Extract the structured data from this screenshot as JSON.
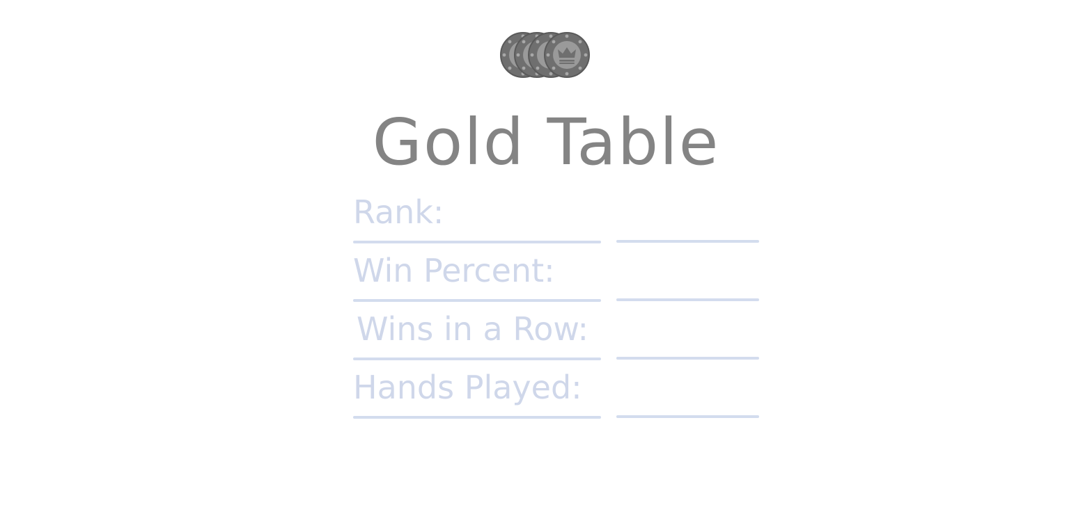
{
  "header": {
    "icon": "poker-chip-stack-icon",
    "title": "Gold Table"
  },
  "stats": [
    {
      "label": "Rank:",
      "value": ""
    },
    {
      "label": "Win Percent:",
      "value": ""
    },
    {
      "label": "Wins in a Row:",
      "value": ""
    },
    {
      "label": "Hands Played:",
      "value": ""
    }
  ],
  "colors": {
    "title": "#848484",
    "label": "#cfd7ea",
    "underline": "#d3dcee",
    "chip": "#6f6f6f",
    "chip_inner": "#9a9a9a"
  }
}
